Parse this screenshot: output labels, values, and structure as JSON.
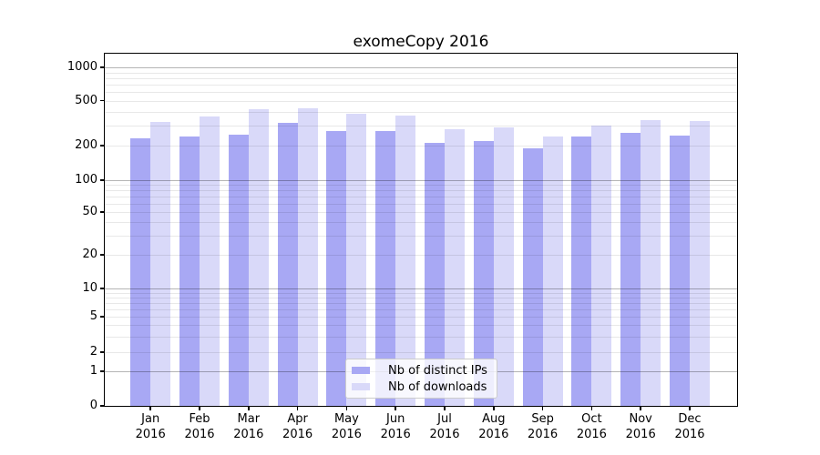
{
  "chart_data": {
    "type": "bar",
    "title": "exomeCopy 2016",
    "x": {
      "months": [
        "Jan",
        "Feb",
        "Mar",
        "Apr",
        "May",
        "Jun",
        "Jul",
        "Aug",
        "Sep",
        "Oct",
        "Nov",
        "Dec"
      ],
      "year": "2016"
    },
    "series": [
      {
        "name": "Nb of distinct IPs",
        "color": "#a8a8f4",
        "values": [
          231,
          241,
          251,
          316,
          270,
          267,
          213,
          219,
          190,
          241,
          259,
          244
        ]
      },
      {
        "name": "Nb of downloads",
        "color": "#d9d9f9",
        "values": [
          322,
          362,
          419,
          425,
          382,
          371,
          279,
          291,
          241,
          299,
          338,
          328
        ]
      }
    ],
    "y_ticks": [
      0,
      1,
      2,
      5,
      10,
      20,
      50,
      100,
      200,
      500,
      1000
    ],
    "y_scale": "log-like with labeled ticks 0,1,2,5,10,20,50,100,200,500,1000",
    "grid": "horizontal major and minor gridlines drawn over bars",
    "legend_position": "lower center inside plot",
    "background": "#ffffff"
  }
}
